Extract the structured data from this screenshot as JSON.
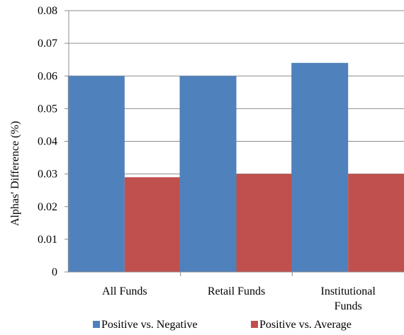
{
  "chart_data": {
    "type": "bar",
    "title": "",
    "xlabel": "",
    "ylabel": "Alphas' Difference (%)",
    "ylim": [
      0,
      0.08
    ],
    "yticks": [
      "0",
      "0.01",
      "0.02",
      "0.03",
      "0.04",
      "0.05",
      "0.06",
      "0.07",
      "0.08"
    ],
    "categories": [
      [
        "All Funds"
      ],
      [
        "Retail Funds"
      ],
      [
        "Institutional",
        "Funds"
      ]
    ],
    "series": [
      {
        "name": "Positive vs. Negative",
        "color": "#4f81bd",
        "values": [
          0.06,
          0.06,
          0.064
        ]
      },
      {
        "name": "Positive vs. Average",
        "color": "#c0504d",
        "values": [
          0.029,
          0.03,
          0.03
        ]
      }
    ],
    "grid": true,
    "legend": "bottom"
  }
}
